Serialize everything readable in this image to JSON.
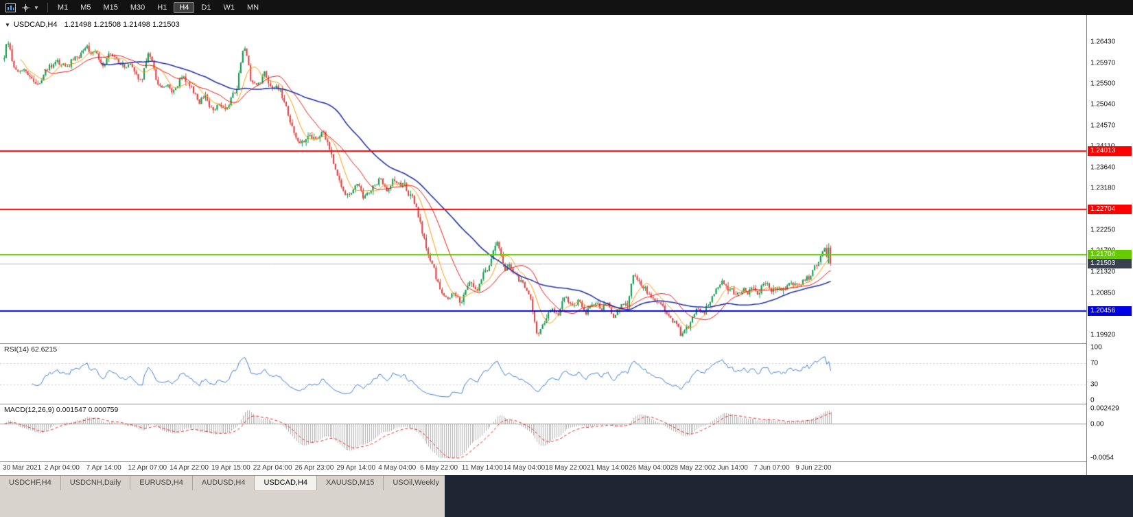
{
  "toolbar": {
    "timeframes": [
      "M1",
      "M5",
      "M15",
      "M30",
      "H1",
      "H4",
      "D1",
      "W1",
      "MN"
    ],
    "active_timeframe": "H4"
  },
  "chart_header": {
    "collapse_icon": "▼",
    "symbol": "USDCAD,H4",
    "ohlc_text": "1.21498 1.21508 1.21498 1.21503"
  },
  "chart_data": {
    "type": "candlestick",
    "symbol": "USDCAD",
    "timeframe": "H4",
    "current_ohlc": [
      1.21498,
      1.21508,
      1.21498,
      1.21503
    ],
    "ylim": [
      1.1978,
      1.2665
    ],
    "price_ticks": [
      "1.26430",
      "1.25970",
      "1.25500",
      "1.25040",
      "1.24570",
      "1.24110",
      "1.23640",
      "1.23180",
      "1.22710",
      "1.22250",
      "1.21790",
      "1.21320",
      "1.20850",
      "1.20390",
      "1.19920"
    ],
    "bar_count": 420,
    "candle_up_color": "#089b4a",
    "candle_down_color": "#e03c3c",
    "price_path": [
      [
        0,
        1.2605
      ],
      [
        0.003,
        1.264
      ],
      [
        0.012,
        1.259
      ],
      [
        0.02,
        1.2575
      ],
      [
        0.04,
        1.256
      ],
      [
        0.058,
        1.259
      ],
      [
        0.079,
        1.26
      ],
      [
        0.1,
        1.263
      ],
      [
        0.112,
        1.261
      ],
      [
        0.12,
        1.26
      ],
      [
        0.128,
        1.262
      ],
      [
        0.141,
        1.258
      ],
      [
        0.153,
        1.2605
      ],
      [
        0.166,
        1.2555
      ],
      [
        0.174,
        1.2618
      ],
      [
        0.186,
        1.255
      ],
      [
        0.207,
        1.253
      ],
      [
        0.215,
        1.2565
      ],
      [
        0.224,
        1.255
      ],
      [
        0.236,
        1.251
      ],
      [
        0.244,
        1.253
      ],
      [
        0.253,
        1.2485
      ],
      [
        0.261,
        1.251
      ],
      [
        0.269,
        1.25
      ],
      [
        0.282,
        1.254
      ],
      [
        0.29,
        1.2648
      ],
      [
        0.298,
        1.256
      ],
      [
        0.307,
        1.255
      ],
      [
        0.315,
        1.257
      ],
      [
        0.323,
        1.254
      ],
      [
        0.331,
        1.2545
      ],
      [
        0.34,
        1.251
      ],
      [
        0.348,
        1.245
      ],
      [
        0.356,
        1.242
      ],
      [
        0.369,
        1.2425
      ],
      [
        0.381,
        1.242
      ],
      [
        0.385,
        1.244
      ],
      [
        0.394,
        1.24
      ],
      [
        0.402,
        1.235
      ],
      [
        0.41,
        1.232
      ],
      [
        0.418,
        1.23
      ],
      [
        0.427,
        1.233
      ],
      [
        0.435,
        1.23
      ],
      [
        0.447,
        1.232
      ],
      [
        0.456,
        1.234
      ],
      [
        0.464,
        1.232
      ],
      [
        0.472,
        1.234
      ],
      [
        0.485,
        1.232
      ],
      [
        0.493,
        1.23
      ],
      [
        0.501,
        1.226
      ],
      [
        0.51,
        1.219
      ],
      [
        0.518,
        1.215
      ],
      [
        0.526,
        1.21
      ],
      [
        0.534,
        1.207
      ],
      [
        0.543,
        1.209
      ],
      [
        0.551,
        1.206
      ],
      [
        0.563,
        1.21
      ],
      [
        0.572,
        1.208
      ],
      [
        0.58,
        1.212
      ],
      [
        0.588,
        1.215
      ],
      [
        0.596,
        1.22
      ],
      [
        0.605,
        1.213
      ],
      [
        0.613,
        1.214
      ],
      [
        0.621,
        1.212
      ],
      [
        0.63,
        1.21
      ],
      [
        0.638,
        1.206
      ],
      [
        0.646,
        1.199
      ],
      [
        0.654,
        1.202
      ],
      [
        0.663,
        1.206
      ],
      [
        0.671,
        1.204
      ],
      [
        0.679,
        1.208
      ],
      [
        0.688,
        1.206
      ],
      [
        0.696,
        1.207
      ],
      [
        0.704,
        1.205
      ],
      [
        0.712,
        1.206
      ],
      [
        0.721,
        1.205
      ],
      [
        0.729,
        1.206
      ],
      [
        0.737,
        1.204
      ],
      [
        0.745,
        1.205
      ],
      [
        0.754,
        1.206
      ],
      [
        0.762,
        1.213
      ],
      [
        0.77,
        1.211
      ],
      [
        0.778,
        1.209
      ],
      [
        0.787,
        1.206
      ],
      [
        0.795,
        1.205
      ],
      [
        0.803,
        1.204
      ],
      [
        0.812,
        1.202
      ],
      [
        0.82,
        1.1988
      ],
      [
        0.828,
        1.201
      ],
      [
        0.836,
        1.205
      ],
      [
        0.845,
        1.204
      ],
      [
        0.853,
        1.206
      ],
      [
        0.861,
        1.21
      ],
      [
        0.87,
        1.211
      ],
      [
        0.878,
        1.209
      ],
      [
        0.886,
        1.208
      ],
      [
        0.894,
        1.21
      ],
      [
        0.903,
        1.209
      ],
      [
        0.911,
        1.208
      ],
      [
        0.919,
        1.211
      ],
      [
        0.927,
        1.21
      ],
      [
        0.936,
        1.209
      ],
      [
        0.944,
        1.21
      ],
      [
        0.952,
        1.211
      ],
      [
        0.96,
        1.21
      ],
      [
        0.968,
        1.211
      ],
      [
        0.976,
        1.212
      ],
      [
        0.984,
        1.215
      ],
      [
        0.992,
        1.219
      ],
      [
        1,
        1.21503
      ]
    ],
    "moving_averages": [
      {
        "period": 9,
        "color": "#ff9900",
        "width": 1
      },
      {
        "period": 21,
        "color": "#ee1111",
        "width": 1
      },
      {
        "period": 50,
        "color": "#2233aa",
        "width": 1.6
      }
    ],
    "hlines": [
      {
        "price": 1.24013,
        "label": "1.24013",
        "color": "#ff0000"
      },
      {
        "price": 1.22704,
        "label": "1.22704",
        "color": "#ff0000"
      },
      {
        "price": 1.21704,
        "label": "1.21704",
        "color": "#66cc00"
      },
      {
        "price": 1.20456,
        "label": "1.20456",
        "color": "#0000e6"
      }
    ],
    "current_price": {
      "value": 1.21503,
      "label": "1.21503",
      "line_color": "#b6b6b6",
      "label_bg": "#39404e"
    },
    "rsi": {
      "title": "RSI(14) 62.6215",
      "period": 14,
      "last_value": 62.6215,
      "color": "#3b7dd8",
      "scale": [
        100,
        70,
        30,
        0
      ],
      "levels": [
        70,
        30
      ]
    },
    "macd": {
      "title": "MACD(12,26,9) 0.001547 0.000759",
      "fast": 12,
      "slow": 26,
      "signal": 9,
      "last_values": [
        0.001547,
        0.000759
      ],
      "range": [
        -0.0054,
        0.002429
      ],
      "scale_top": "0.002429",
      "scale_zero": "0.00",
      "scale_bottom": "-0.0054",
      "histogram_color": "#aeaeae",
      "signal_color": "#ee2222"
    },
    "time_labels": [
      "30 Mar 2021",
      "2 Apr 04:00",
      "7 Apr 14:00",
      "12 Apr 07:00",
      "14 Apr 22:00",
      "19 Apr 15:00",
      "22 Apr 04:00",
      "26 Apr 23:00",
      "29 Apr 14:00",
      "4 May 04:00",
      "6 May 22:00",
      "11 May 14:00",
      "14 May 04:00",
      "18 May 22:00",
      "21 May 14:00",
      "26 May 04:00",
      "28 May 22:00",
      "2 Jun 14:00",
      "7 Jun 07:00",
      "9 Jun 22:00"
    ]
  },
  "tabs": {
    "items": [
      {
        "label": "USDCHF,H4",
        "active": false
      },
      {
        "label": "USDCNH,Daily",
        "active": false
      },
      {
        "label": "EURUSD,H4",
        "active": false
      },
      {
        "label": "AUDUSD,H4",
        "active": false
      },
      {
        "label": "USDCAD,H4",
        "active": true
      },
      {
        "label": "XAUUSD,M15",
        "active": false
      },
      {
        "label": "USOil,Weekly",
        "active": false
      }
    ]
  }
}
